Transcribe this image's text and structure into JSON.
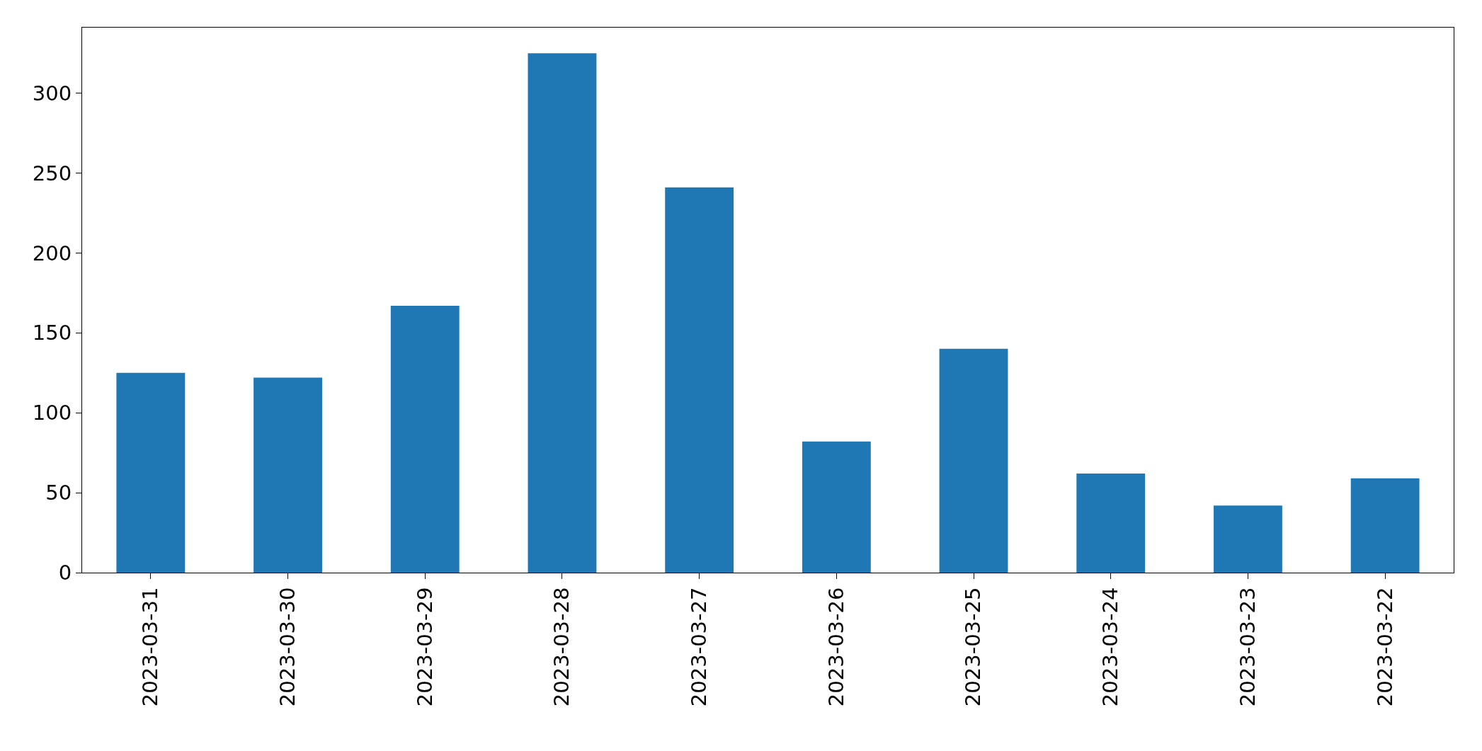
{
  "chart_data": {
    "type": "bar",
    "categories": [
      "2023-03-31",
      "2023-03-30",
      "2023-03-29",
      "2023-03-28",
      "2023-03-27",
      "2023-03-26",
      "2023-03-25",
      "2023-03-24",
      "2023-03-23",
      "2023-03-22"
    ],
    "values": [
      125,
      122,
      167,
      325,
      241,
      82,
      140,
      62,
      42,
      59
    ],
    "color": "#1f77b4",
    "ylim": [
      0,
      341
    ],
    "yticks": [
      0,
      50,
      100,
      150,
      200,
      250,
      300
    ]
  }
}
